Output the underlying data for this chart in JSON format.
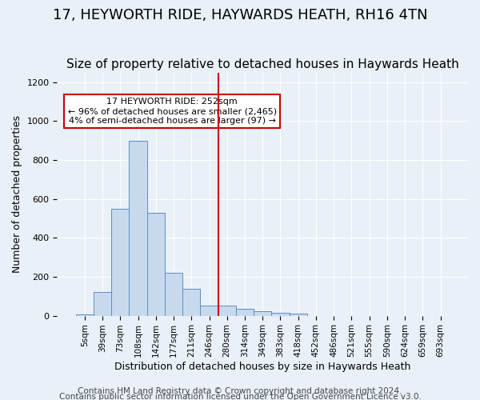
{
  "title1": "17, HEYWORTH RIDE, HAYWARDS HEATH, RH16 4TN",
  "title2": "Size of property relative to detached houses in Haywards Heath",
  "xlabel": "Distribution of detached houses by size in Haywards Heath",
  "ylabel": "Number of detached properties",
  "bin_labels": [
    "5sqm",
    "39sqm",
    "73sqm",
    "108sqm",
    "142sqm",
    "177sqm",
    "211sqm",
    "246sqm",
    "280sqm",
    "314sqm",
    "349sqm",
    "383sqm",
    "418sqm",
    "452sqm",
    "486sqm",
    "521sqm",
    "555sqm",
    "590sqm",
    "624sqm",
    "659sqm",
    "693sqm"
  ],
  "bar_heights": [
    5,
    120,
    550,
    900,
    530,
    220,
    140,
    50,
    50,
    35,
    25,
    15,
    10,
    0,
    0,
    0,
    0,
    0,
    0,
    0,
    0
  ],
  "bar_color": "#c9d9ed",
  "bar_edge_color": "#5a8fc0",
  "vline_x": 7.5,
  "vline_color": "#cc0000",
  "annotation_text": "17 HEYWORTH RIDE: 252sqm\n← 96% of detached houses are smaller (2,465)\n4% of semi-detached houses are larger (97) →",
  "annotation_box_color": "#ffffff",
  "annotation_box_edge": "#cc0000",
  "ylim": [
    0,
    1250
  ],
  "yticks": [
    0,
    200,
    400,
    600,
    800,
    1000,
    1200
  ],
  "footer1": "Contains HM Land Registry data © Crown copyright and database right 2024.",
  "footer2": "Contains public sector information licensed under the Open Government Licence v3.0.",
  "bg_color": "#eaf0f8",
  "plot_bg_color": "#eaf0f8",
  "title1_fontsize": 13,
  "title2_fontsize": 11,
  "xlabel_fontsize": 9,
  "ylabel_fontsize": 9,
  "footer_fontsize": 7.5
}
